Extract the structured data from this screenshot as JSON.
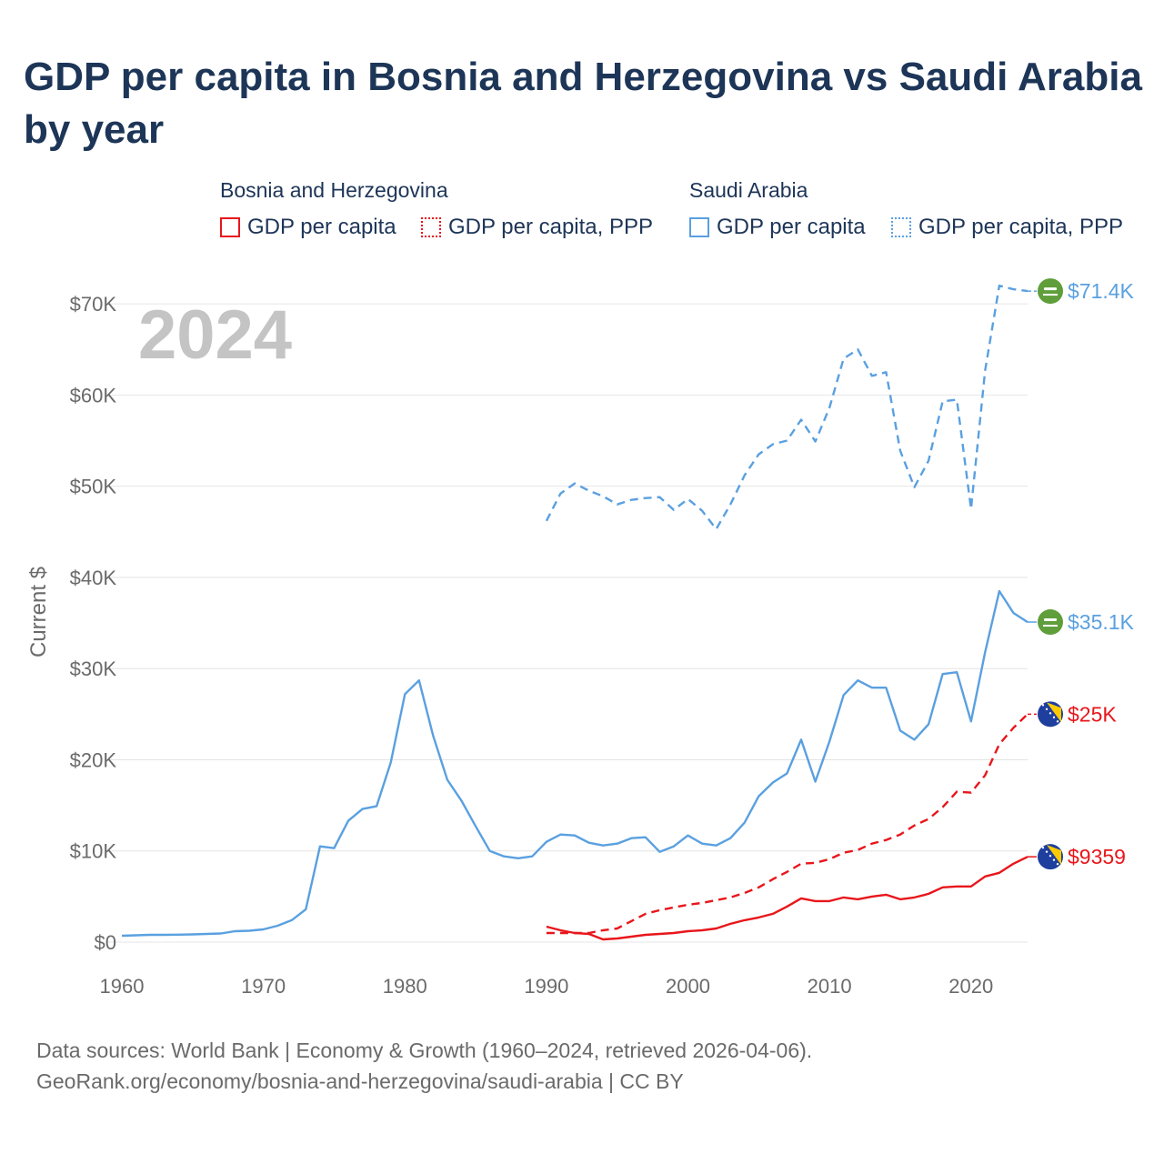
{
  "title": "GDP per capita in Bosnia and Herzegovina vs Saudi Arabia by year",
  "legend": {
    "groups": [
      {
        "name": "Bosnia and Herzegovina",
        "items": [
          {
            "label": "GDP per capita",
            "color": "#e8161b",
            "style": "solid"
          },
          {
            "label": "GDP per capita, PPP",
            "color": "#e8161b",
            "style": "dotted"
          }
        ]
      },
      {
        "name": "Saudi Arabia",
        "items": [
          {
            "label": "GDP per capita",
            "color": "#5aa0e0",
            "style": "solid"
          },
          {
            "label": "GDP per capita, PPP",
            "color": "#5aa0e0",
            "style": "dotted"
          }
        ]
      }
    ]
  },
  "sources": {
    "line1": "Data sources: World Bank | Economy & Growth (1960–2024, retrieved 2026-04-06).",
    "line2": "GeoRank.org/economy/bosnia-and-herzegovina/saudi-arabia | CC BY"
  },
  "chart_data": {
    "type": "line",
    "title": "GDP per capita in Bosnia and Herzegovina vs Saudi Arabia by year",
    "xlabel": "",
    "ylabel": "Current $",
    "year_overlay": "2024",
    "xlim": [
      1960,
      2024
    ],
    "ylim": [
      0,
      74000
    ],
    "x_ticks": [
      1960,
      1970,
      1980,
      1990,
      2000,
      2010,
      2020
    ],
    "y_ticks": [
      0,
      10000,
      20000,
      30000,
      40000,
      50000,
      60000,
      70000
    ],
    "y_tick_labels": [
      "$0",
      "$10K",
      "$20K",
      "$30K",
      "$40K",
      "$50K",
      "$60K",
      "$70K"
    ],
    "grid": true,
    "series": [
      {
        "name": "Saudi Arabia - GDP per capita",
        "color": "#5aa0e0",
        "dash": "solid",
        "end_label": "$35.1K",
        "x": [
          1960,
          1961,
          1962,
          1963,
          1964,
          1965,
          1966,
          1967,
          1968,
          1969,
          1970,
          1971,
          1972,
          1973,
          1974,
          1975,
          1976,
          1977,
          1978,
          1979,
          1980,
          1981,
          1982,
          1983,
          1984,
          1985,
          1986,
          1987,
          1988,
          1989,
          1990,
          1991,
          1992,
          1993,
          1994,
          1995,
          1996,
          1997,
          1998,
          1999,
          2000,
          2001,
          2002,
          2003,
          2004,
          2005,
          2006,
          2007,
          2008,
          2009,
          2010,
          2011,
          2012,
          2013,
          2014,
          2015,
          2016,
          2017,
          2018,
          2019,
          2020,
          2021,
          2022,
          2023,
          2024
        ],
        "values": [
          700,
          750,
          800,
          800,
          820,
          850,
          900,
          950,
          1200,
          1250,
          1400,
          1800,
          2400,
          3600,
          10500,
          10300,
          13300,
          14600,
          14900,
          19700,
          27200,
          28700,
          22600,
          17800,
          15500,
          12700,
          10000,
          9400,
          9200,
          9400,
          11000,
          11800,
          11700,
          10900,
          10600,
          10800,
          11400,
          11500,
          9900,
          10500,
          11700,
          10800,
          10600,
          11400,
          13100,
          16000,
          17500,
          18500,
          22200,
          17600,
          22000,
          27100,
          28700,
          27900,
          27900,
          23200,
          22200,
          23900,
          29400,
          29600,
          24200,
          31800,
          38500,
          36100,
          35100
        ]
      },
      {
        "name": "Saudi Arabia - GDP per capita, PPP",
        "color": "#5aa0e0",
        "dash": "dashed",
        "end_label": "$71.4K",
        "x": [
          1990,
          1991,
          1992,
          1993,
          1994,
          1995,
          1996,
          1997,
          1998,
          1999,
          2000,
          2001,
          2002,
          2003,
          2004,
          2005,
          2006,
          2007,
          2008,
          2009,
          2010,
          2011,
          2012,
          2013,
          2014,
          2015,
          2016,
          2017,
          2018,
          2019,
          2020,
          2021,
          2022,
          2023,
          2024
        ],
        "values": [
          46200,
          49200,
          50300,
          49500,
          48900,
          48000,
          48500,
          48700,
          48800,
          47400,
          48600,
          47300,
          45300,
          48000,
          51200,
          53500,
          54600,
          55000,
          57300,
          54900,
          58600,
          64000,
          65000,
          62100,
          62500,
          53900,
          49900,
          52800,
          59300,
          59500,
          47500,
          62700,
          72000,
          71600,
          71400
        ]
      },
      {
        "name": "Bosnia and Herzegovina - GDP per capita",
        "color": "#e8161b",
        "dash": "solid",
        "end_label": "$9359",
        "x": [
          1990,
          1991,
          1992,
          1993,
          1994,
          1995,
          1996,
          1997,
          1998,
          1999,
          2000,
          2001,
          2002,
          2003,
          2004,
          2005,
          2006,
          2007,
          2008,
          2009,
          2010,
          2011,
          2012,
          2013,
          2014,
          2015,
          2016,
          2017,
          2018,
          2019,
          2020,
          2021,
          2022,
          2023,
          2024
        ],
        "values": [
          1700,
          1300,
          1000,
          900,
          300,
          400,
          600,
          800,
          900,
          1000,
          1200,
          1300,
          1500,
          2000,
          2400,
          2700,
          3100,
          3900,
          4800,
          4500,
          4500,
          4900,
          4700,
          5000,
          5200,
          4700,
          4900,
          5300,
          6000,
          6100,
          6100,
          7200,
          7600,
          8600,
          9359
        ]
      },
      {
        "name": "Bosnia and Herzegovina - GDP per capita, PPP",
        "color": "#e8161b",
        "dash": "dashed",
        "end_label": "$25K",
        "x": [
          1990,
          1991,
          1992,
          1993,
          1994,
          1995,
          1996,
          1997,
          1998,
          1999,
          2000,
          2001,
          2002,
          2003,
          2004,
          2005,
          2006,
          2007,
          2008,
          2009,
          2010,
          2011,
          2012,
          2013,
          2014,
          2015,
          2016,
          2017,
          2018,
          2019,
          2020,
          2021,
          2022,
          2023,
          2024
        ],
        "values": [
          1000,
          1000,
          1000,
          1000,
          1300,
          1500,
          2300,
          3100,
          3500,
          3800,
          4100,
          4300,
          4600,
          4900,
          5400,
          6000,
          6900,
          7700,
          8600,
          8700,
          9100,
          9800,
          10100,
          10800,
          11200,
          11800,
          12800,
          13500,
          14800,
          16500,
          16400,
          18300,
          21700,
          23500,
          25000
        ]
      }
    ]
  }
}
